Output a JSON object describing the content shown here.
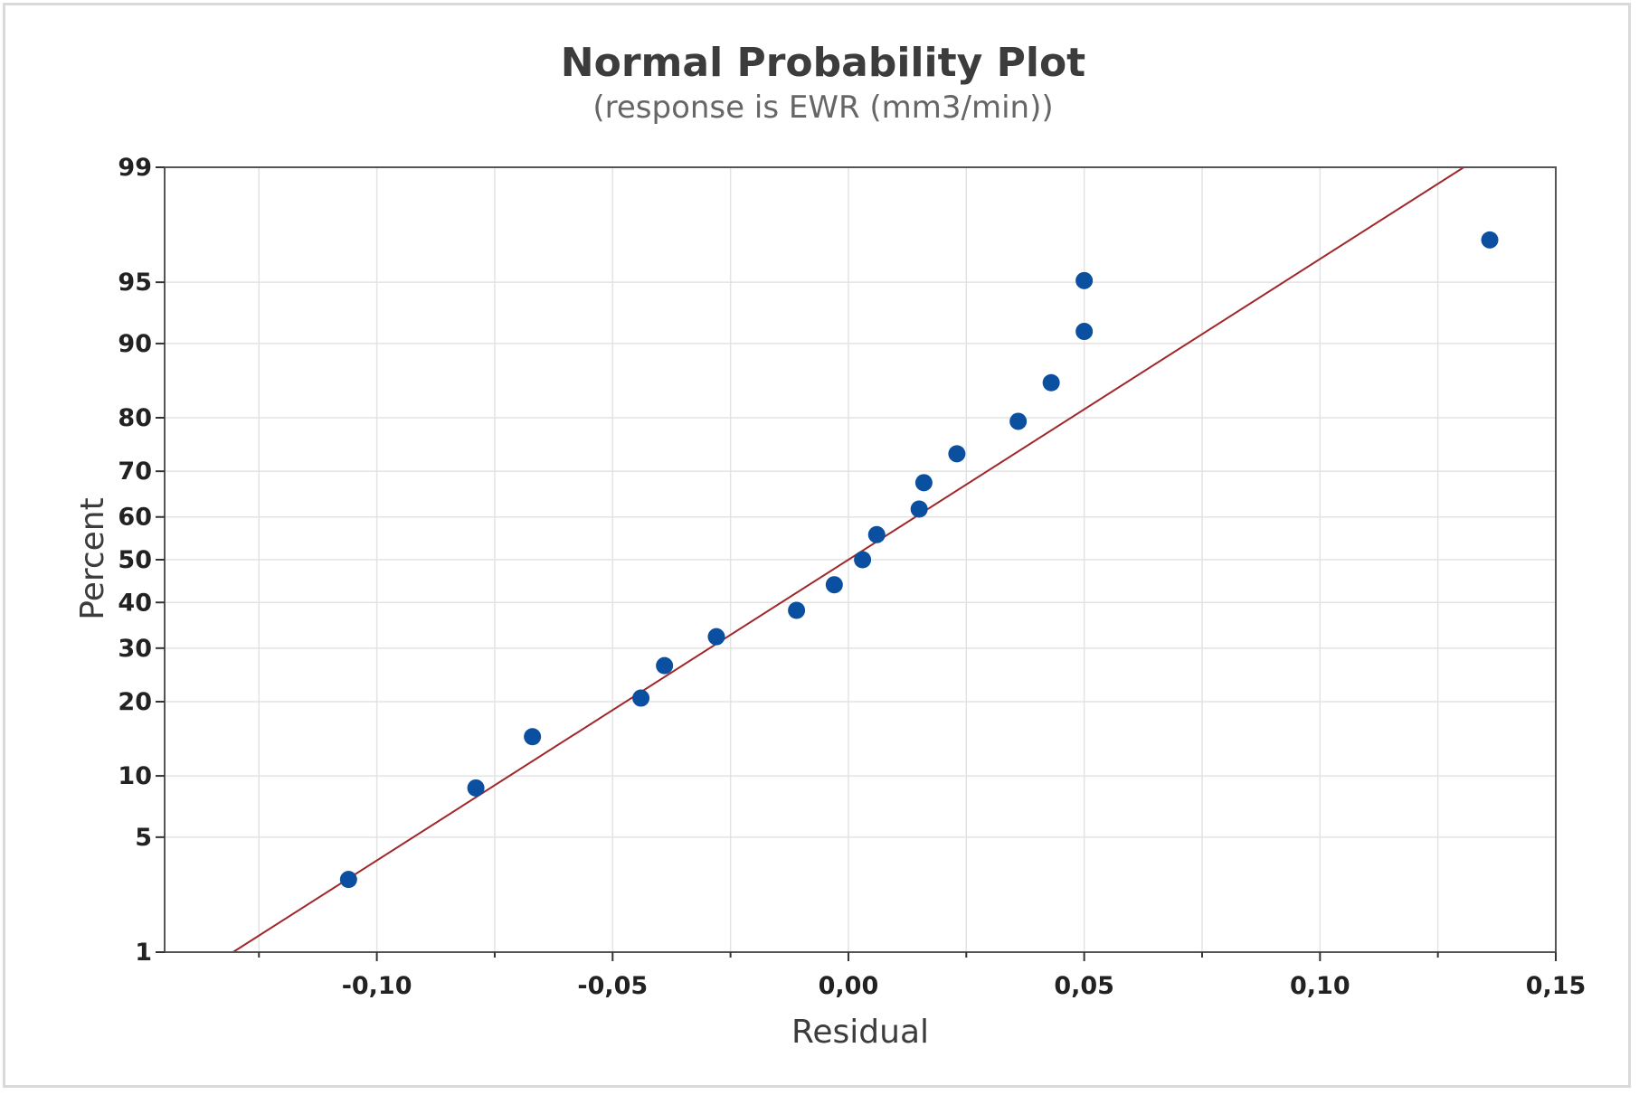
{
  "chart_data": {
    "type": "scatter",
    "title": "Normal Probability Plot",
    "subtitle": "(response is EWR (mm3/min))",
    "xlabel": "Residual",
    "ylabel": "Percent",
    "y_scale": "normal-probability",
    "grid": true,
    "xlim": [
      -0.145,
      0.15
    ],
    "ylim": [
      1,
      99
    ],
    "x_ticks": [
      -0.1,
      -0.05,
      0.0,
      0.05,
      0.1,
      0.15
    ],
    "x_tick_labels": [
      "-0,10",
      "-0,05",
      "0,00",
      "0,05",
      "0,10",
      "0,15"
    ],
    "y_ticks": [
      1,
      5,
      10,
      20,
      30,
      40,
      50,
      60,
      70,
      80,
      90,
      95,
      99
    ],
    "y_tick_labels": [
      "1",
      "5",
      "10",
      "20",
      "30",
      "40",
      "50",
      "60",
      "70",
      "80",
      "90",
      "95",
      "99"
    ],
    "point_color": "#0a4fa0",
    "line_color": "#a0282a",
    "points": [
      {
        "x": -0.106,
        "y": 2.9
      },
      {
        "x": -0.079,
        "y": 8.8
      },
      {
        "x": -0.067,
        "y": 14.7
      },
      {
        "x": -0.044,
        "y": 20.6
      },
      {
        "x": -0.039,
        "y": 26.5
      },
      {
        "x": -0.028,
        "y": 32.4
      },
      {
        "x": -0.011,
        "y": 38.2
      },
      {
        "x": -0.003,
        "y": 44.1
      },
      {
        "x": 0.003,
        "y": 50.0
      },
      {
        "x": 0.006,
        "y": 55.9
      },
      {
        "x": 0.015,
        "y": 61.8
      },
      {
        "x": 0.016,
        "y": 67.6
      },
      {
        "x": 0.023,
        "y": 73.5
      },
      {
        "x": 0.036,
        "y": 79.4
      },
      {
        "x": 0.043,
        "y": 85.3
      },
      {
        "x": 0.05,
        "y": 91.2
      },
      {
        "x": 0.05,
        "y": 95.1
      },
      {
        "x": 0.136,
        "y": 97.1
      }
    ],
    "fit_line": {
      "x": [
        -0.1305,
        0.1305
      ],
      "y": [
        1,
        99
      ]
    }
  }
}
